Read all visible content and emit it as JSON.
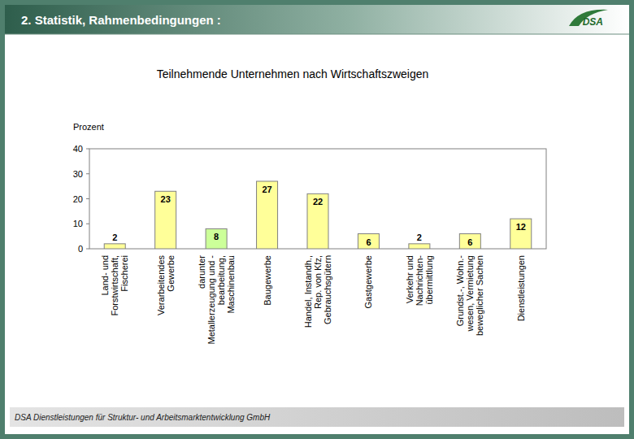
{
  "slide": {
    "header": "2. Statistik, Rahmenbedingungen :",
    "logo": "DSA",
    "footer": "DSA Dienstleistungen für Struktur- und Arbeitsmarktentwicklung GmbH"
  },
  "chart_data": {
    "type": "bar",
    "title": "Teilnehmende Unternehmen nach Wirtschaftszweigen",
    "y_label": "Prozent",
    "categories": [
      "Land- und\nForstwirtschaft,\nFischerei",
      "Verarbeitendes\nGewerbe",
      "darunter\nMetallerzeugung und -\nbearbeitung,\nMaschinenbau",
      "Baugewerbe",
      "Handel, Instandh.,\nRep. von Kfz,\nGebrauchsgütern",
      "Gastgewerbe",
      "Verkehr und\nNachrichten-\nübermittlung",
      "Grundst.-, Wohn.-\nwesen, Vermietung\nbeweglicher Sachen",
      "Dienstleistungen"
    ],
    "values": [
      2,
      23,
      8,
      27,
      22,
      6,
      2,
      6,
      12
    ],
    "colors": [
      "#ffff99",
      "#ffff99",
      "#ccff99",
      "#ffff99",
      "#ffff99",
      "#ffff99",
      "#ffff99",
      "#ffff99",
      "#ffff99"
    ],
    "ylim": [
      0,
      40
    ],
    "yticks": [
      0,
      10,
      20,
      30,
      40
    ],
    "grid": false,
    "data_labels": true
  }
}
